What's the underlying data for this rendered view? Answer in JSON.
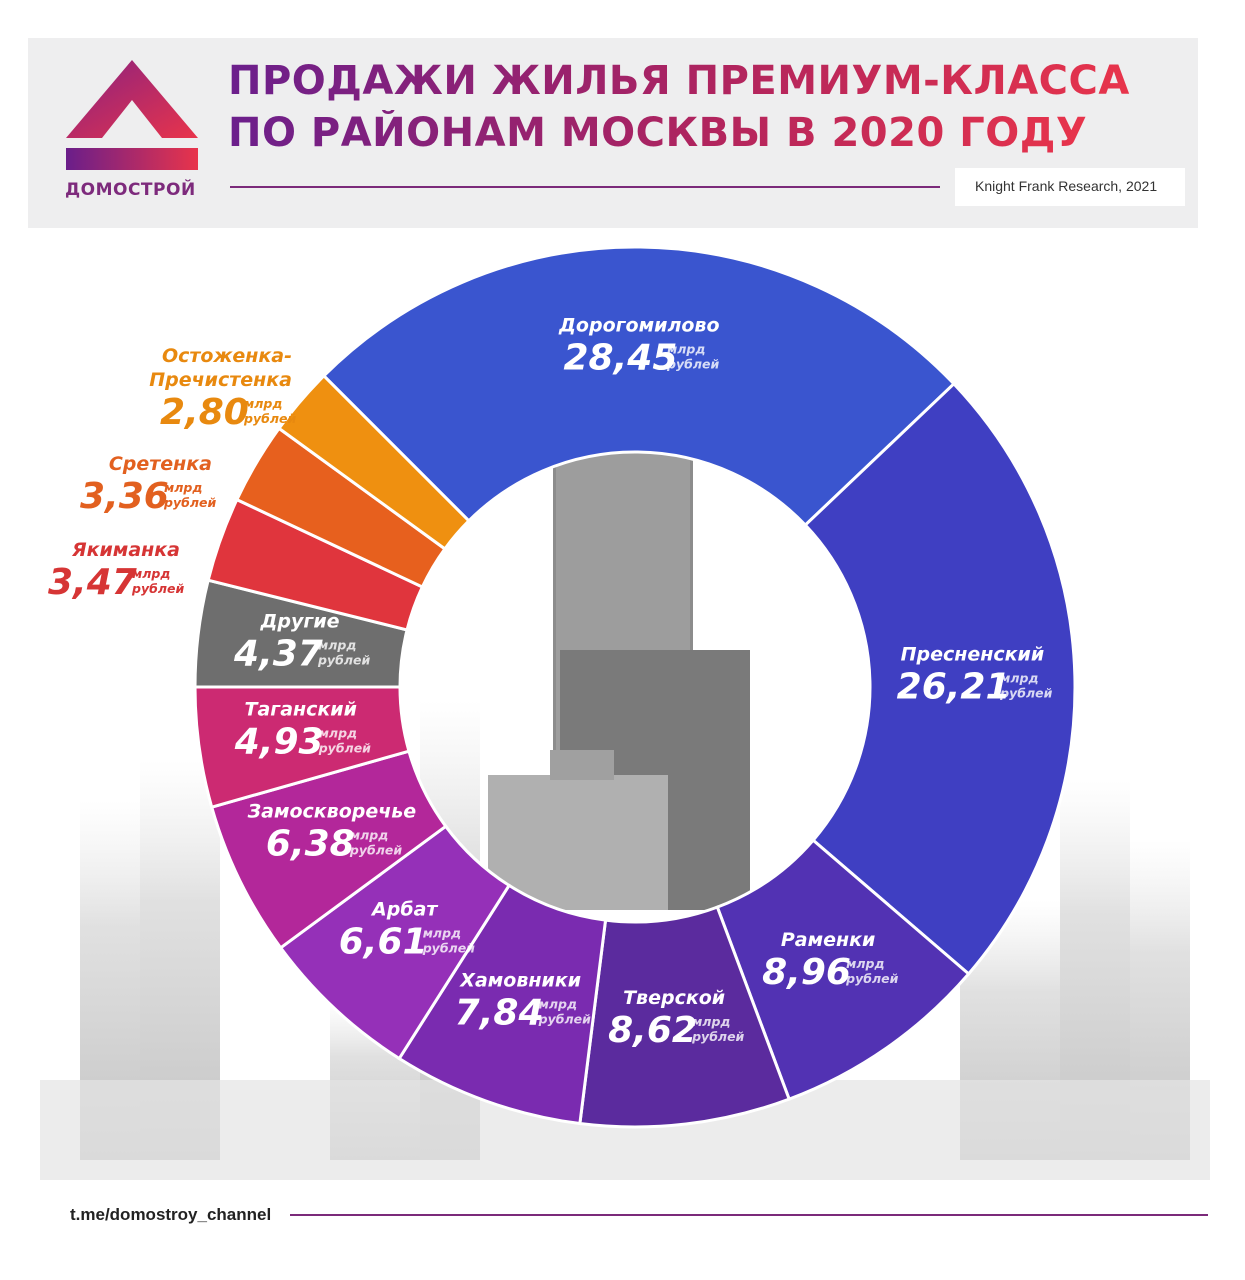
{
  "header": {
    "title_line1": "ПРОДАЖИ ЖИЛЬЯ ПРЕМИУМ-КЛАССА",
    "title_line2": "ПО РАЙОНАМ МОСКВЫ В 2020 ГОДУ",
    "source": "Knight Frank Research, 2021"
  },
  "brand": {
    "name": "ДОМОСТРОЙ",
    "logo_icon": "triangle-logo-icon"
  },
  "footer": {
    "link": "t.me/domostroy_channel"
  },
  "colors": {
    "accent_purple": "#7b2a7a",
    "accent_red": "#e8344b"
  },
  "chart_data": {
    "type": "pie",
    "variant": "donut",
    "unit_line1": "млрд",
    "unit_line2": "рублей",
    "slices": [
      {
        "label": "Дорогомилово",
        "value": 28.45,
        "display": "28,45",
        "color": "#3a55cf",
        "label_color": "#ffffff"
      },
      {
        "label": "Пресненский",
        "value": 26.21,
        "display": "26,21",
        "color": "#3f3fc2",
        "label_color": "#ffffff"
      },
      {
        "label": "Раменки",
        "value": 8.96,
        "display": "8,96",
        "color": "#5232b3",
        "label_color": "#ffffff"
      },
      {
        "label": "Тверской",
        "value": 8.62,
        "display": "8,62",
        "color": "#5b2b9e",
        "label_color": "#ffffff"
      },
      {
        "label": "Хамовники",
        "value": 7.84,
        "display": "7,84",
        "color": "#7a2bb0",
        "label_color": "#ffffff"
      },
      {
        "label": "Арбат",
        "value": 6.61,
        "display": "6,61",
        "color": "#9530b8",
        "label_color": "#ffffff"
      },
      {
        "label": "Замоскворечье",
        "value": 6.38,
        "display": "6,38",
        "color": "#b3279a",
        "label_color": "#ffffff"
      },
      {
        "label": "Таганский",
        "value": 4.93,
        "display": "4,93",
        "color": "#cc2a72",
        "label_color": "#ffffff"
      },
      {
        "label": "Другие",
        "value": 4.37,
        "display": "4,37",
        "color": "#6e6e6e",
        "label_color": "#ffffff"
      },
      {
        "label": "Якиманка",
        "value": 3.47,
        "display": "3,47",
        "color": "#e0353d",
        "label_color": "#d63535"
      },
      {
        "label": "Сретенка",
        "value": 3.36,
        "display": "3,36",
        "color": "#e7601e",
        "label_color": "#e2601f"
      },
      {
        "label": "Остоженка-Пречистенка",
        "value": 2.8,
        "display": "2,80",
        "color": "#ef9010",
        "label_color": "#e8890f"
      }
    ]
  }
}
